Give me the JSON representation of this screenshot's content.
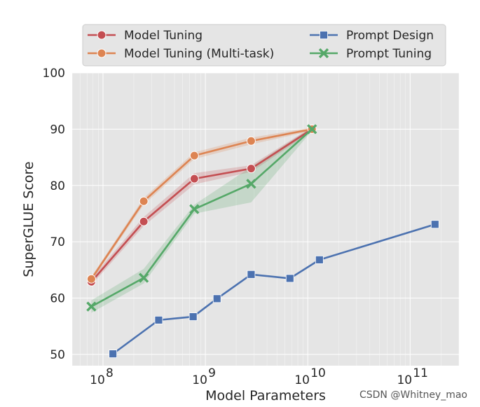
{
  "chart_data": {
    "type": "line",
    "xlabel": "Model Parameters",
    "ylabel": "SuperGLUE Score",
    "xscale": "log",
    "xlim": [
      50000000,
      300000000000
    ],
    "ylim": [
      48,
      100
    ],
    "yticks": [
      50,
      60,
      70,
      80,
      90,
      100
    ],
    "xticks": [
      {
        "value": 100000000,
        "base": "10",
        "exp": "8"
      },
      {
        "value": 1000000000,
        "base": "10",
        "exp": "9"
      },
      {
        "value": 10000000000,
        "base": "10",
        "exp": "10"
      },
      {
        "value": 100000000000,
        "base": "10",
        "exp": "11"
      }
    ],
    "grid": true,
    "legend_position": "top",
    "series": [
      {
        "name": "Model Tuning",
        "color": "#c44e52",
        "marker": "circle",
        "x": [
          77000000,
          250000000,
          780000000,
          2800000000,
          11000000000
        ],
        "y": [
          62.9,
          73.6,
          81.2,
          83.0,
          90.0
        ],
        "band_low": [
          62.3,
          72.8,
          80.2,
          82.4,
          89.6
        ],
        "band_high": [
          63.5,
          74.4,
          82.2,
          83.6,
          90.4
        ]
      },
      {
        "name": "Model Tuning (Multi-task)",
        "color": "#dd8452",
        "marker": "circle",
        "x": [
          77000000,
          250000000,
          780000000,
          2800000000,
          11000000000
        ],
        "y": [
          63.4,
          77.2,
          85.3,
          87.9,
          90.0
        ],
        "band_low": [
          63.0,
          76.6,
          84.7,
          87.3,
          89.7
        ],
        "band_high": [
          63.8,
          77.8,
          85.9,
          88.5,
          90.3
        ]
      },
      {
        "name": "Prompt Design",
        "color": "#4c72b0",
        "marker": "square",
        "x": [
          125000000,
          350000000,
          760000000,
          1300000000,
          2800000000,
          6700000000,
          13000000000,
          175000000000
        ],
        "y": [
          50.1,
          56.1,
          56.7,
          59.9,
          64.2,
          63.5,
          66.8,
          73.1
        ]
      },
      {
        "name": "Prompt Tuning",
        "color": "#55a868",
        "marker": "x",
        "x": [
          77000000,
          250000000,
          780000000,
          2800000000,
          11000000000
        ],
        "y": [
          58.5,
          63.6,
          75.8,
          80.3,
          90.0
        ],
        "band_low": [
          57.4,
          62.6,
          75.0,
          77.0,
          89.7
        ],
        "band_high": [
          59.6,
          65.2,
          76.6,
          83.3,
          90.3
        ]
      }
    ]
  },
  "watermark": "CSDN @Whitney_mao"
}
